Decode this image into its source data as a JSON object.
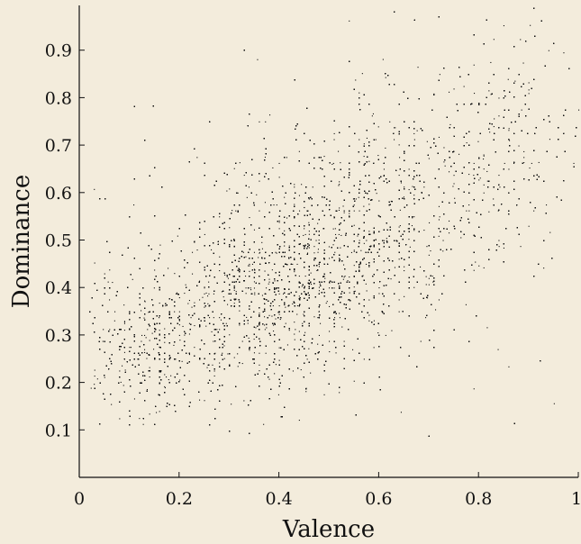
{
  "chart_data": {
    "type": "scatter",
    "title": "",
    "xlabel": "Valence",
    "ylabel": "Dominance",
    "xlim": [
      0,
      1
    ],
    "ylim": [
      0,
      1
    ],
    "x_ticks": [
      "0",
      "0.2",
      "0.4",
      "0.6",
      "0.8",
      "1"
    ],
    "y_ticks": [
      "0.1",
      "0.2",
      "0.3",
      "0.4",
      "0.5",
      "0.6",
      "0.7",
      "0.8",
      "0.9"
    ],
    "grid": false,
    "legend": "none",
    "marker_color": "#111111",
    "background_color": "#f3ecdc",
    "point_count_approx": 20000,
    "density_clusters": [
      {
        "x": 0.15,
        "y": 0.28,
        "weight": 0.18,
        "sx": 0.08,
        "sy": 0.09
      },
      {
        "x": 0.35,
        "y": 0.38,
        "weight": 0.2,
        "sx": 0.09,
        "sy": 0.1
      },
      {
        "x": 0.48,
        "y": 0.45,
        "weight": 0.28,
        "sx": 0.1,
        "sy": 0.12
      },
      {
        "x": 0.65,
        "y": 0.58,
        "weight": 0.17,
        "sx": 0.09,
        "sy": 0.12
      },
      {
        "x": 0.85,
        "y": 0.72,
        "weight": 0.1,
        "sx": 0.09,
        "sy": 0.12
      },
      {
        "x": 0.5,
        "y": 0.5,
        "weight": 0.07,
        "sx": 0.3,
        "sy": 0.25
      }
    ]
  }
}
